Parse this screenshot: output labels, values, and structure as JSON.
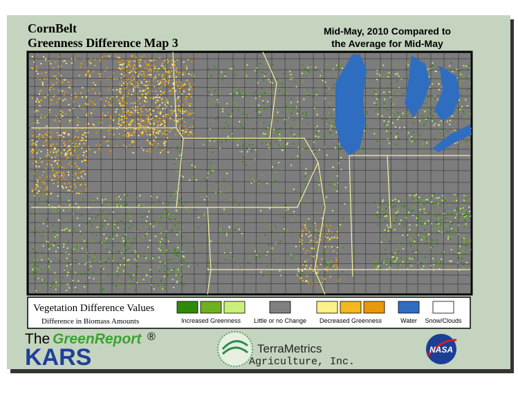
{
  "header": {
    "title": "CornBelt",
    "subtitle": "Greenness Difference Map 3",
    "period_line1": "Mid-May, 2010 Compared to",
    "period_line2": "the Average for Mid-May"
  },
  "legend": {
    "title": "Vegetation Difference Values",
    "subtitle": "Difference in Biomass Amounts",
    "groups": [
      {
        "label": "Increased Greenness",
        "colors": [
          "#2f8a0c",
          "#6fb01e",
          "#c9f07a"
        ]
      },
      {
        "label": "Little or no Change",
        "colors": [
          "#7f7f7f"
        ]
      },
      {
        "label": "Decreased Greenness",
        "colors": [
          "#fbf08a",
          "#f2b81c",
          "#e8980a"
        ]
      },
      {
        "label": "Water",
        "colors": [
          "#2f6dc0"
        ]
      },
      {
        "label": "Snow/Clouds",
        "colors": [
          "#ffffff"
        ]
      }
    ]
  },
  "logos": {
    "greenreport_prefix": "The",
    "greenreport_name": "GreenReport",
    "greenreport_mark": "®",
    "kars": "KARS",
    "terrametrics": "TerraMetrics",
    "terrametrics_sub": "Agriculture, Inc.",
    "nasa": "NASA"
  }
}
